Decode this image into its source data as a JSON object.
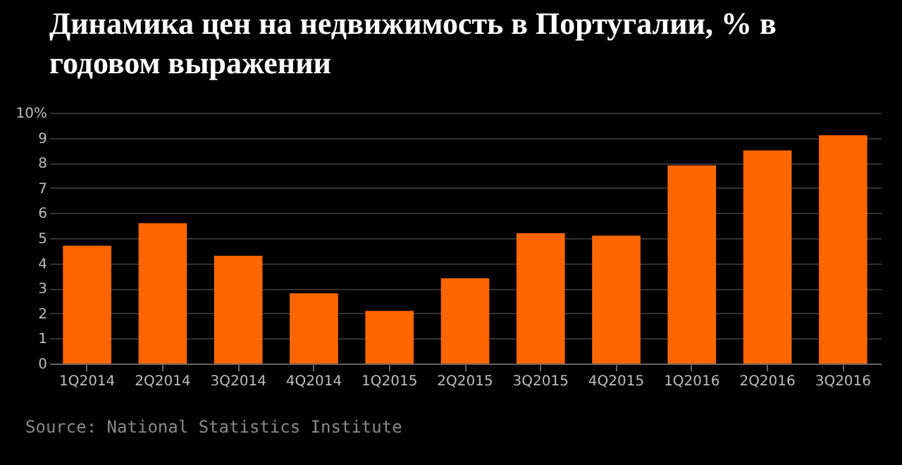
{
  "chart_data": {
    "type": "bar",
    "title": "Динамика цен на недвижимость в Португалии, % в годовом выражении",
    "categories": [
      "1Q2014",
      "2Q2014",
      "3Q2014",
      "4Q2014",
      "1Q2015",
      "2Q2015",
      "3Q2015",
      "4Q2015",
      "1Q2016",
      "2Q2016",
      "3Q2016"
    ],
    "values": [
      4.7,
      5.6,
      4.3,
      2.8,
      2.1,
      3.4,
      5.2,
      5.1,
      7.9,
      8.5,
      9.1
    ],
    "color": "#ff6600",
    "ylim": [
      0,
      10
    ],
    "yticks": [
      0,
      1,
      2,
      3,
      4,
      5,
      6,
      7,
      8,
      9,
      {
        "value": 10,
        "label": "10%"
      }
    ],
    "grid": "y",
    "annotations": [
      "Source: National Statistics Institute"
    ]
  }
}
